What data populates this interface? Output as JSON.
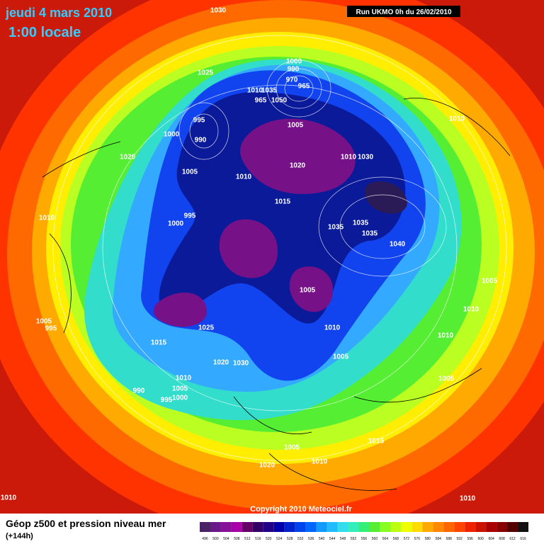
{
  "header": {
    "date": "jeudi 4 mars 2010",
    "time": "1:00 locale",
    "run": "Run UKMO 0h du 26/02/2010"
  },
  "isobar_labels": [
    1030,
    1025,
    1000,
    990,
    970,
    965,
    1010,
    1035,
    965,
    1050,
    995,
    990,
    1000,
    1005,
    1020,
    1005,
    1010,
    1020,
    1010,
    1030,
    1010,
    1015,
    1010,
    995,
    1000,
    1035,
    1035,
    1035,
    1040,
    1005,
    1005,
    1010,
    1005,
    995,
    1010,
    1025,
    1015,
    1010,
    1005,
    1020,
    1030,
    1010,
    1005,
    1005,
    990,
    995,
    1000,
    1015,
    1005,
    1010,
    1020,
    1010,
    1010
  ],
  "footer": {
    "copyright": "Copyright 2010 Meteociel.fr",
    "title": "Géop z500 et pression niveau mer",
    "lead": "(+144h)"
  },
  "legend": {
    "labels": [
      496,
      500,
      504,
      508,
      512,
      516,
      520,
      524,
      528,
      532,
      536,
      540,
      544,
      548,
      552,
      556,
      560,
      564,
      568,
      572,
      576,
      580,
      584,
      588,
      592,
      596,
      600,
      604,
      608,
      612,
      616
    ]
  }
}
